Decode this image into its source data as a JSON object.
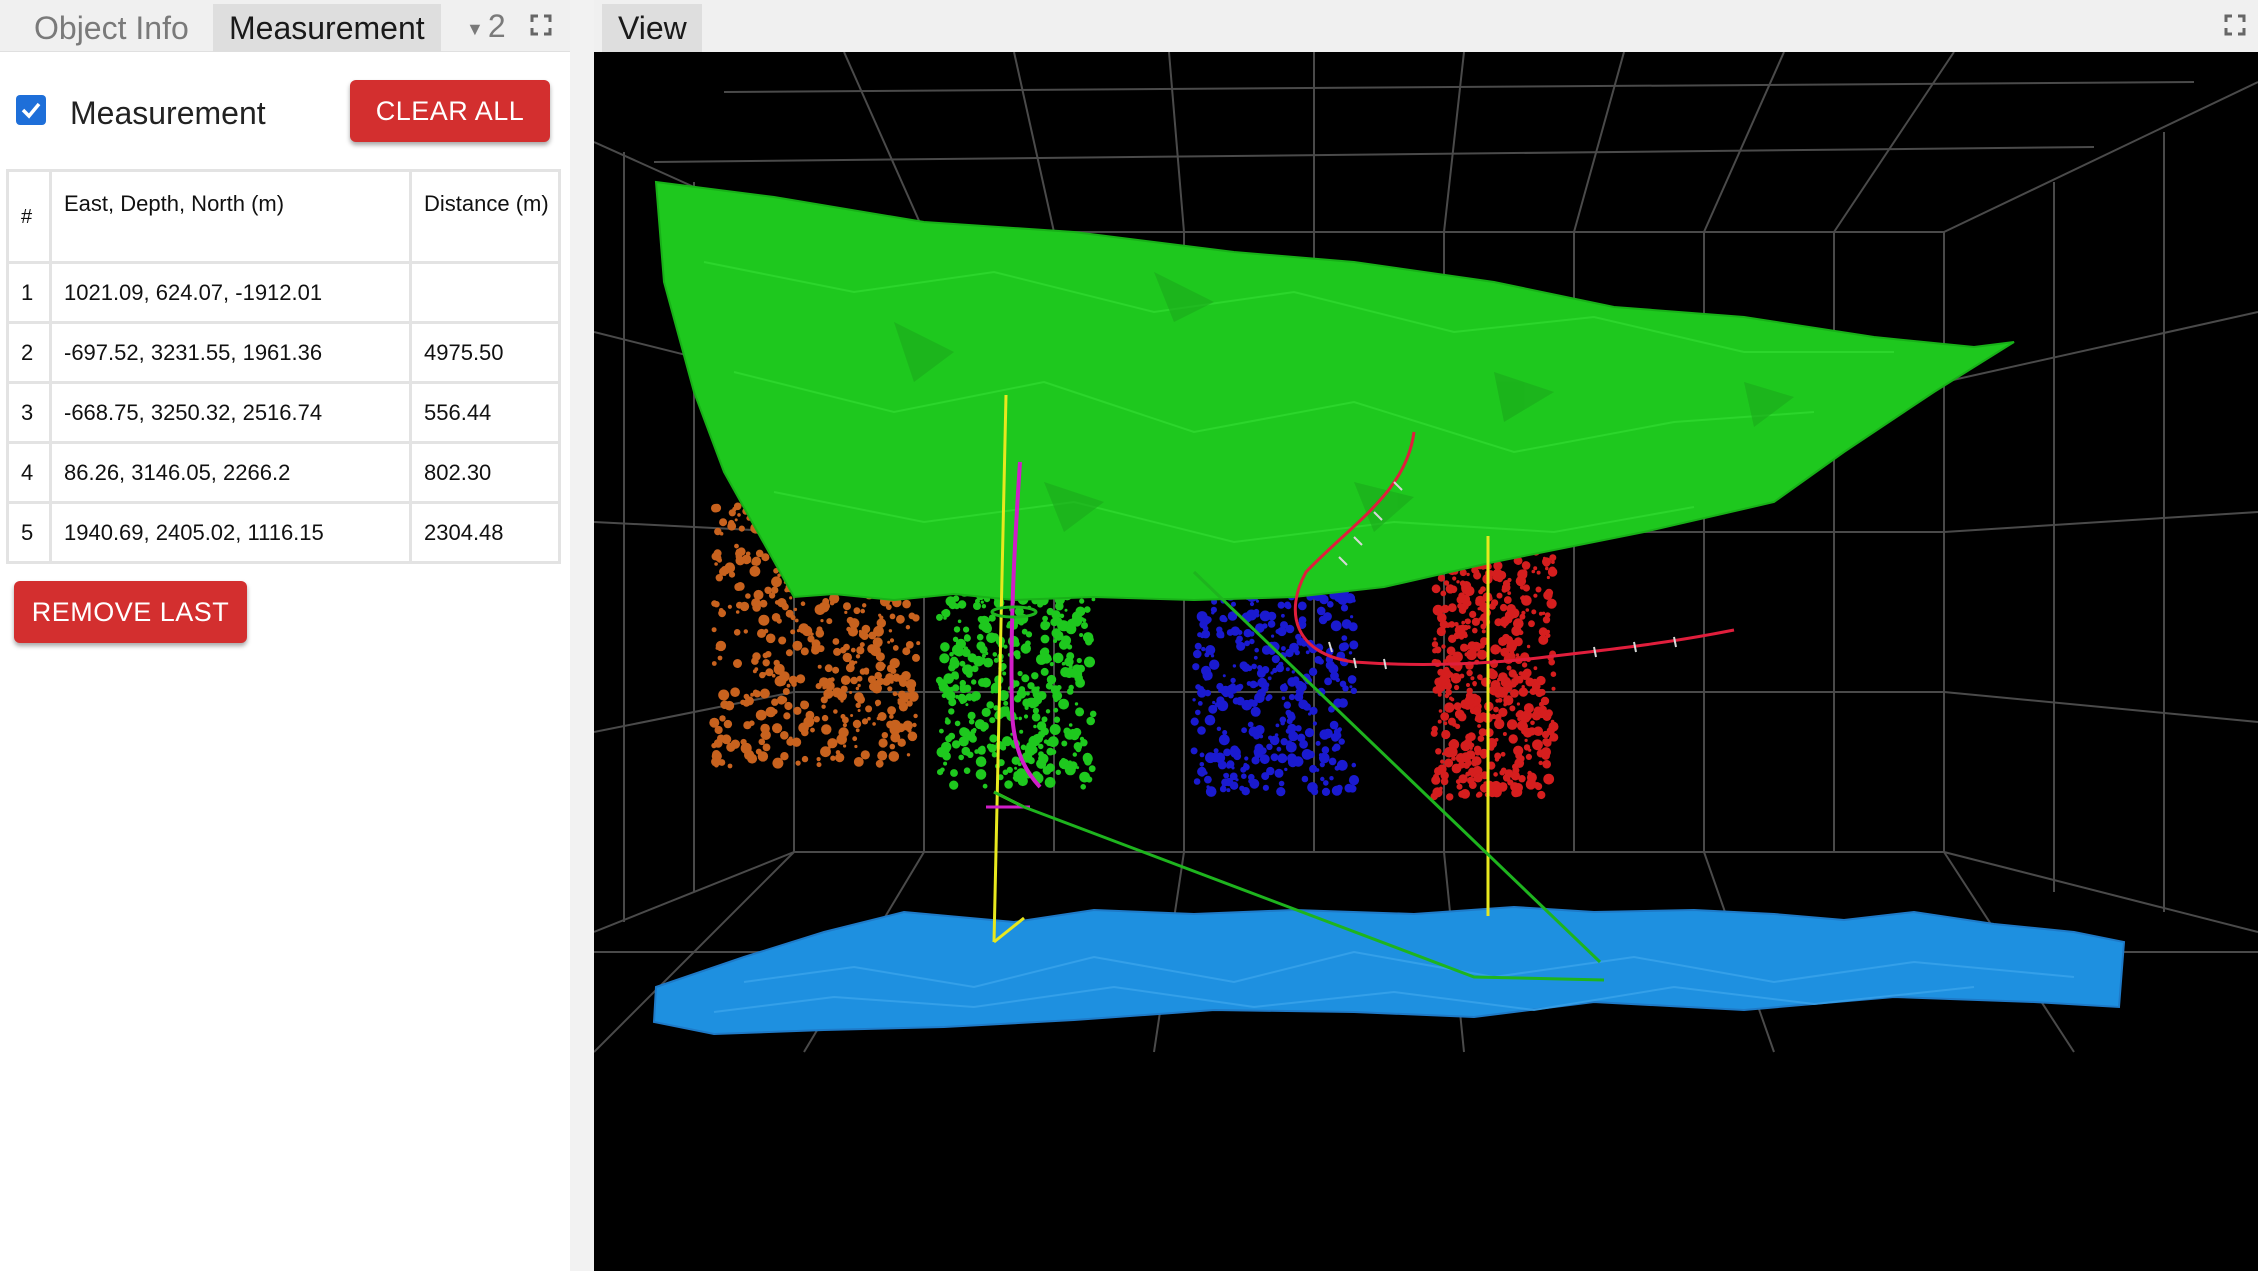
{
  "left_panel": {
    "tabs": {
      "object_info": "Object Info",
      "measurement": "Measurement",
      "extra_count": "2"
    },
    "measurement_toggle": {
      "label": "Measurement",
      "checked": true
    },
    "clear_all_label": "CLEAR ALL",
    "remove_last_label": "REMOVE LAST",
    "table": {
      "headers": {
        "index": "#",
        "coords": "East, Depth, North (m)",
        "distance": "Distance (m)"
      },
      "rows": [
        {
          "index": "1",
          "coords": "1021.09, 624.07, -1912.01",
          "distance": ""
        },
        {
          "index": "2",
          "coords": "-697.52, 3231.55, 1961.36",
          "distance": "4975.50"
        },
        {
          "index": "3",
          "coords": "-668.75, 3250.32, 2516.74",
          "distance": "556.44"
        },
        {
          "index": "4",
          "coords": "86.26, 3146.05, 2266.2",
          "distance": "802.30"
        },
        {
          "index": "5",
          "coords": "1940.69, 2405.02, 1116.15",
          "distance": "2304.48"
        }
      ]
    }
  },
  "view_panel": {
    "tab_label": "View"
  },
  "colors": {
    "accent_button": "#d32f2f",
    "checkbox": "#1e6fd9",
    "top_surface": "#1ec81e",
    "bottom_surface": "#1e90e0",
    "cloud_orange": "#c8621e",
    "cloud_green": "#1ec81e",
    "cloud_blue": "#1a1ad0",
    "cloud_red": "#d51e1e",
    "well_yellow": "#e8e81e",
    "well_magenta": "#d01ec8",
    "well_red": "#e01e3c",
    "measure_line": "#1eb41e"
  },
  "icons": {
    "maximize": "maximize-icon",
    "check": "check-icon",
    "dropdown": "caret-down-icon"
  }
}
